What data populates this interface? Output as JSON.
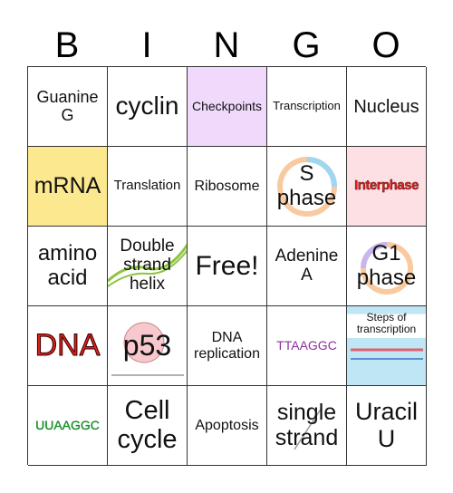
{
  "header": {
    "letters": [
      "B",
      "I",
      "N",
      "G",
      "O"
    ]
  },
  "grid": {
    "rows": [
      [
        "Guanine\nG",
        "cyclin",
        "Checkpoints",
        "Transcription",
        "Nucleus"
      ],
      [
        "mRNA",
        "Translation",
        "Ribosome",
        "S\nphase",
        "Interphase"
      ],
      [
        "amino\nacid",
        "Double\nstrand\nhelix",
        "Free!",
        "Adenine\nA",
        "G1\nphase"
      ],
      [
        "DNA",
        "p53",
        "DNA\nreplication",
        "TTAAGGC",
        "Steps of\ntranscription"
      ],
      [
        "UUAAGGC",
        "Cell\ncycle",
        "Apoptosis",
        "single\nstrand",
        "Uracil\nU"
      ]
    ]
  }
}
